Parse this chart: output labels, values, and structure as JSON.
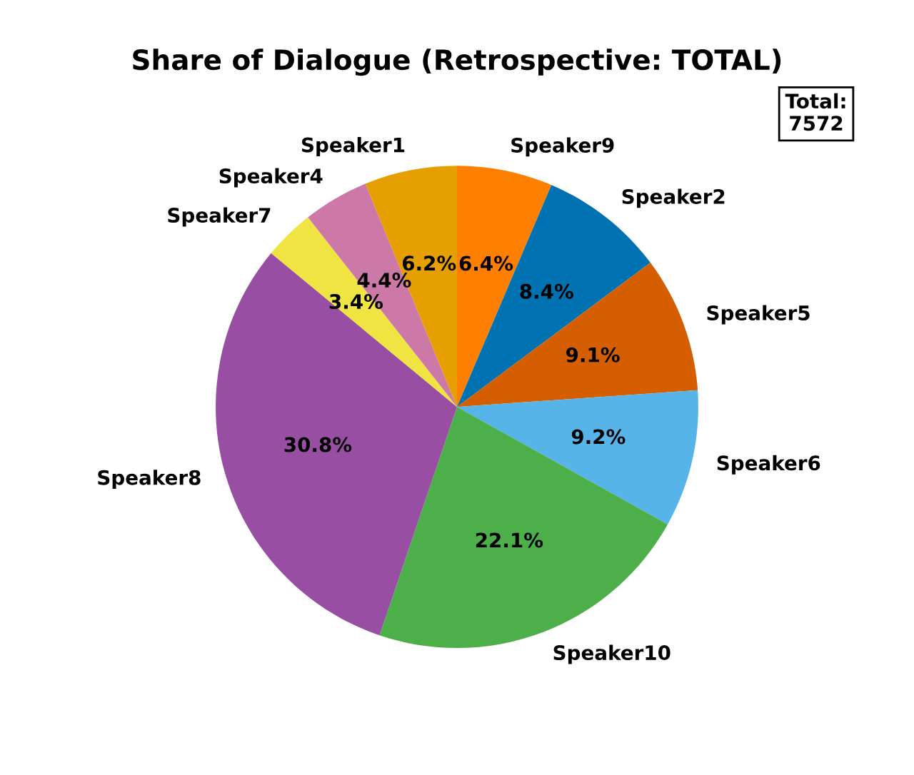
{
  "chart_data": {
    "type": "pie",
    "title": "Share of Dialogue (Retrospective: TOTAL)",
    "categories": [
      "Speaker9",
      "Speaker2",
      "Speaker5",
      "Speaker6",
      "Speaker10",
      "Speaker8",
      "Speaker7",
      "Speaker4",
      "Speaker1"
    ],
    "values": [
      6.4,
      8.4,
      9.1,
      9.2,
      22.1,
      30.8,
      3.4,
      4.4,
      6.2
    ],
    "value_labels": [
      "6.4%",
      "8.4%",
      "9.1%",
      "9.2%",
      "22.1%",
      "30.8%",
      "3.4%",
      "4.4%",
      "6.2%"
    ],
    "colors": [
      "#ff7f00",
      "#0072b2",
      "#d55e00",
      "#56b4e9",
      "#4daf4a",
      "#984ea3",
      "#f0e442",
      "#cc79a7",
      "#e69f00"
    ],
    "annotations": [
      "Total:\n7572"
    ]
  }
}
